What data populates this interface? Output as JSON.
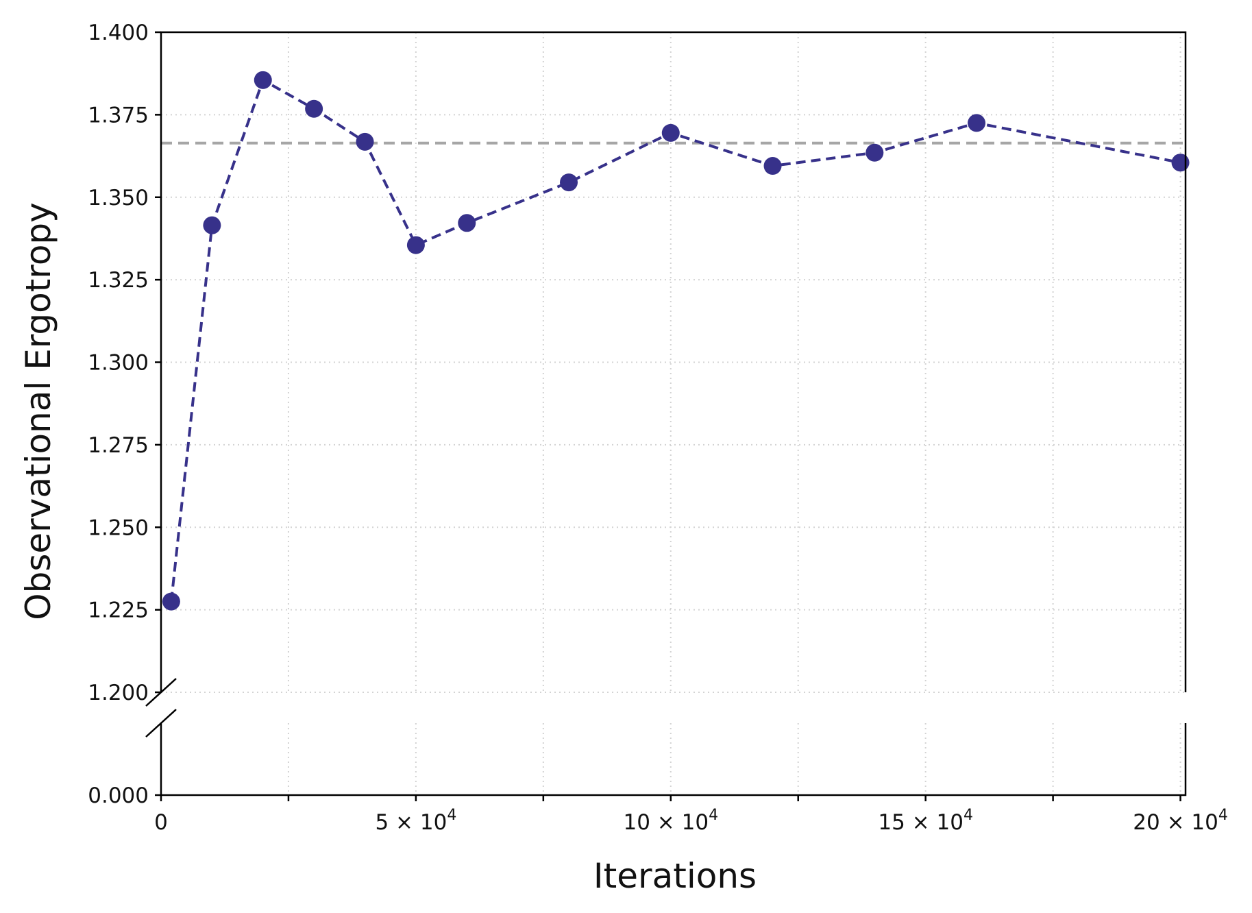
{
  "chart_data": {
    "type": "line",
    "xlabel": "Iterations",
    "ylabel": "Observational Ergotropy",
    "xlim": [
      0,
      201000
    ],
    "ylim_upper": [
      1.2,
      1.4
    ],
    "ylim_lower": [
      0.0,
      0.05
    ],
    "broken_y_axis": true,
    "grid": true,
    "legend": "none",
    "x_ticks": [
      {
        "value": 0,
        "mantissa": "0",
        "exponent": ""
      },
      {
        "value": 50000,
        "mantissa": "5 × 10",
        "exponent": "4"
      },
      {
        "value": 100000,
        "mantissa": "10 × 10",
        "exponent": "4"
      },
      {
        "value": 150000,
        "mantissa": "15 × 10",
        "exponent": "4"
      },
      {
        "value": 200000,
        "mantissa": "20 × 10",
        "exponent": "4"
      }
    ],
    "x_minor_ticks": [
      25000,
      75000,
      125000,
      175000
    ],
    "y_ticks_upper": [
      {
        "value": 1.2,
        "label": "1.200"
      },
      {
        "value": 1.225,
        "label": "1.225"
      },
      {
        "value": 1.25,
        "label": "1.250"
      },
      {
        "value": 1.275,
        "label": "1.275"
      },
      {
        "value": 1.3,
        "label": "1.300"
      },
      {
        "value": 1.325,
        "label": "1.325"
      },
      {
        "value": 1.35,
        "label": "1.350"
      },
      {
        "value": 1.375,
        "label": "1.375"
      },
      {
        "value": 1.4,
        "label": "1.400"
      }
    ],
    "y_ticks_lower": [
      {
        "value": 0.0,
        "label": "0.000"
      }
    ],
    "series": [
      {
        "color": "#37318a",
        "line_style": "dashed",
        "marker": "circle",
        "x": [
          2000,
          10000,
          20000,
          30000,
          40000,
          50000,
          60000,
          80000,
          100000,
          120000,
          140000,
          160000,
          200000
        ],
        "y": [
          1.2275,
          1.3415,
          1.3855,
          1.3768,
          1.3668,
          1.3355,
          1.3422,
          1.3545,
          1.3695,
          1.3595,
          1.3635,
          1.3725,
          1.3605
        ]
      }
    ],
    "reference_line": {
      "y": 1.3664,
      "color": "#a6a6a6",
      "line_style": "dashed"
    }
  }
}
